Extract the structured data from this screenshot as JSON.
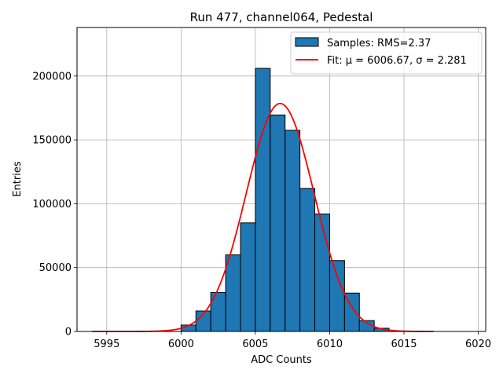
{
  "chart_data": {
    "type": "bar",
    "title": "Run 477, channel064, Pedestal",
    "xlabel": "ADC Counts",
    "ylabel": "Entries",
    "xlim": [
      5993,
      6020.5
    ],
    "ylim": [
      0,
      238000
    ],
    "xticks": [
      5995,
      6000,
      6005,
      6010,
      6015,
      6020
    ],
    "yticks": [
      0,
      50000,
      100000,
      150000,
      200000
    ],
    "grid": true,
    "legend_position": "top-right",
    "bin_width": 1,
    "bins": [
      {
        "x": 6000,
        "value": 5000
      },
      {
        "x": 6001,
        "value": 16000
      },
      {
        "x": 6002,
        "value": 30500
      },
      {
        "x": 6003,
        "value": 60000
      },
      {
        "x": 6004,
        "value": 85000
      },
      {
        "x": 6005,
        "value": 206000
      },
      {
        "x": 6006,
        "value": 169500
      },
      {
        "x": 6007,
        "value": 157500
      },
      {
        "x": 6008,
        "value": 112000
      },
      {
        "x": 6009,
        "value": 92000
      },
      {
        "x": 6010,
        "value": 55500
      },
      {
        "x": 6011,
        "value": 30000
      },
      {
        "x": 6012,
        "value": 8500
      },
      {
        "x": 6013,
        "value": 2500
      }
    ],
    "fit": {
      "mu": 6006.67,
      "sigma": 2.281,
      "amplitude": 178500,
      "x_range": [
        5994,
        6017
      ]
    },
    "series": [
      {
        "name": "Samples: RMS=2.37",
        "color": "#1f77b4",
        "edge_color": "#000000"
      },
      {
        "name": "Fit: μ = 6006.67, σ = 2.281",
        "color": "#ff0000"
      }
    ]
  }
}
